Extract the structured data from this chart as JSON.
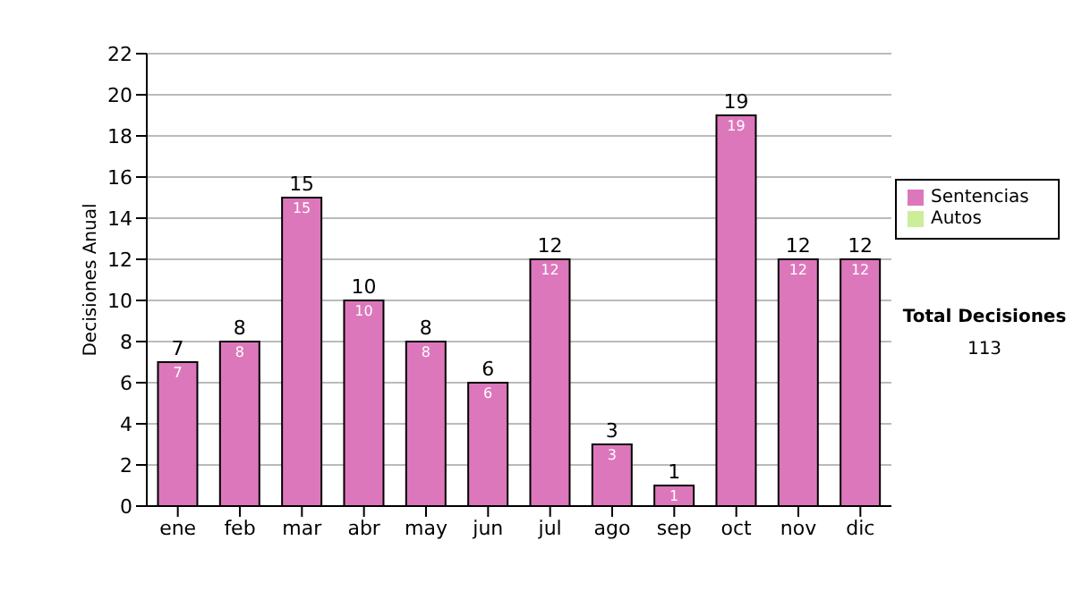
{
  "chart_data": {
    "type": "bar",
    "ylabel": "Decisiones Anual",
    "categories": [
      "ene",
      "feb",
      "mar",
      "abr",
      "may",
      "jun",
      "jul",
      "ago",
      "sep",
      "oct",
      "nov",
      "dic"
    ],
    "series": [
      {
        "name": "Sentencias",
        "color": "#dd77bb",
        "values": [
          7,
          8,
          15,
          10,
          8,
          6,
          12,
          3,
          1,
          19,
          12,
          12
        ]
      },
      {
        "name": "Autos",
        "color": "#ccee99",
        "values": [
          null,
          null,
          null,
          null,
          null,
          null,
          null,
          null,
          null,
          null,
          null,
          null
        ]
      }
    ],
    "stacked": true,
    "data_labels": true,
    "totals": [
      "7",
      "8",
      "15",
      "10",
      "8",
      "6",
      "12",
      "3",
      "1",
      "19",
      "12",
      "12"
    ],
    "ylim": [
      0,
      22
    ],
    "yticks": [
      0,
      2,
      4,
      6,
      8,
      10,
      12,
      14,
      16,
      18,
      20,
      22
    ],
    "grid": "y",
    "legend": "right",
    "annotations": [
      "Total Decisiones",
      "113"
    ]
  }
}
